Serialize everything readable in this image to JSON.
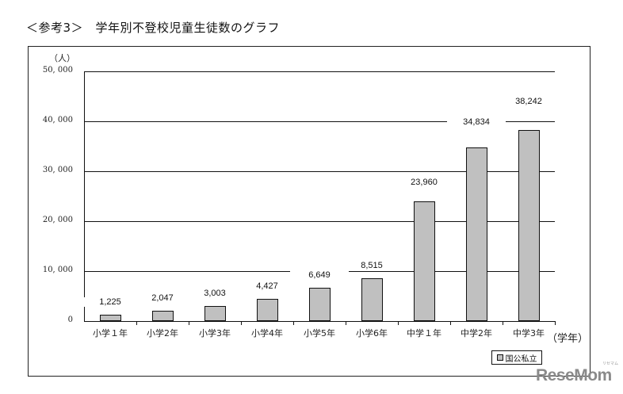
{
  "title": "＜参考3＞　学年別不登校児童生徒数のグラフ",
  "chart_data": {
    "type": "bar",
    "title": "＜参考3＞　学年別不登校児童生徒数のグラフ",
    "xlabel": "（学年）",
    "ylabel": "（人）",
    "categories": [
      "小学１年",
      "小学2年",
      "小学3年",
      "小学4年",
      "小学5年",
      "小学6年",
      "中学１年",
      "中学2年",
      "中学3年"
    ],
    "series": [
      {
        "name": "国公私立",
        "values": [
          1225,
          2047,
          3003,
          4427,
          6649,
          8515,
          23960,
          34834,
          38242
        ],
        "color": "#c0c0c0"
      }
    ],
    "data_labels": [
      "1,225",
      "2,047",
      "3,003",
      "4,427",
      "6,649",
      "8,515",
      "23,960",
      "34,834",
      "38,242"
    ],
    "ylim": [
      0,
      50000
    ],
    "yticks": [
      "0",
      "10, 000",
      "20, 000",
      "30, 000",
      "40, 000",
      "50, 000"
    ],
    "grid": true,
    "legend_position": "bottom-right"
  },
  "legend": {
    "label": "国公私立"
  },
  "watermark": {
    "text": "ReseMom",
    "sub": "リセマム"
  }
}
